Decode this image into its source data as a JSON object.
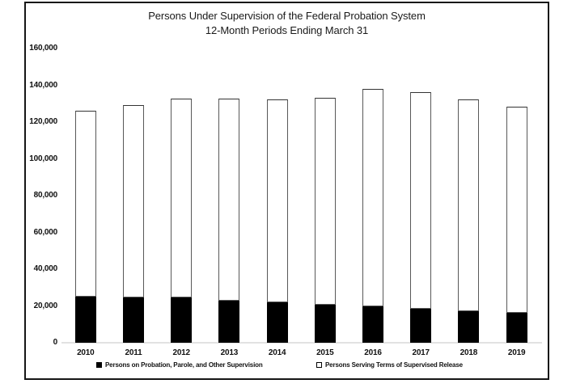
{
  "chart": {
    "title_line1": "Persons Under Supervision of the Federal Probation System",
    "title_line2": "12-Month Periods Ending March 31",
    "legend": [
      {
        "label": "Persons on Probation, Parole, and Other Supervision",
        "swatch": "black"
      },
      {
        "label": "Persons Serving Terms of Supervised Release",
        "swatch": "white"
      }
    ]
  },
  "chart_data": {
    "type": "bar",
    "stacked": true,
    "title": "Persons Under Supervision of the Federal Probation System",
    "subtitle": "12-Month Periods Ending March 31",
    "categories": [
      "2010",
      "2011",
      "2012",
      "2013",
      "2014",
      "2015",
      "2016",
      "2017",
      "2018",
      "2019"
    ],
    "series": [
      {
        "name": "Persons on Probation, Parole, and Other Supervision",
        "color": "#000000",
        "values": [
          25200,
          24800,
          24500,
          22700,
          21900,
          20800,
          19800,
          18300,
          17200,
          16100
        ]
      },
      {
        "name": "Persons Serving Terms of Supervised Release",
        "color": "#ffffff",
        "values": [
          100800,
          104400,
          108100,
          109900,
          110400,
          112400,
          118100,
          118100,
          115100,
          112300
        ]
      }
    ],
    "totals": [
      126000,
      129200,
      132600,
      132600,
      132300,
      133200,
      137900,
      136400,
      132300,
      128400
    ],
    "xlabel": "",
    "ylabel": "",
    "ylim": [
      0,
      160000
    ],
    "ytick_step": 20000,
    "yticks": [
      "0",
      "20,000",
      "40,000",
      "60,000",
      "80,000",
      "100,000",
      "120,000",
      "140,000",
      "160,000"
    ],
    "grid": false,
    "legend_position": "bottom"
  }
}
